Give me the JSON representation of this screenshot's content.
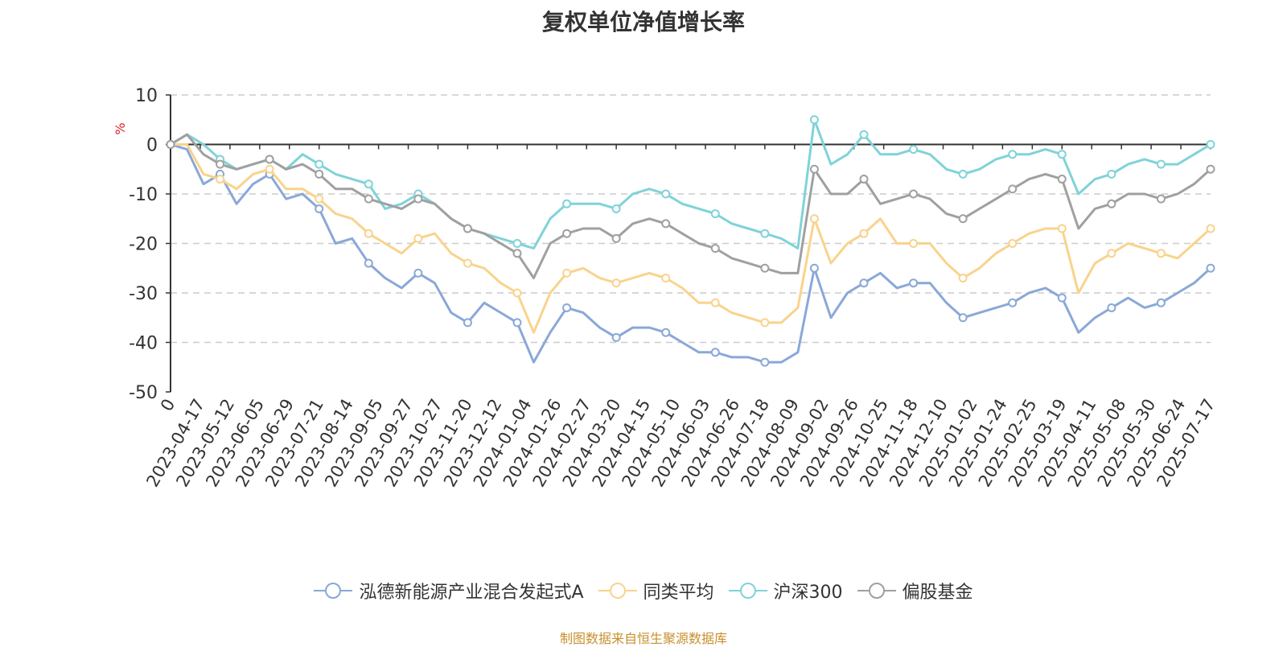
{
  "chart_data": {
    "type": "line",
    "title": "复权单位净值增长率",
    "ylabel": "%",
    "ylim": [
      -50,
      10
    ],
    "yticks": [
      10,
      0,
      -10,
      -20,
      -30,
      -40,
      -50
    ],
    "x_tick_labels": [
      "0",
      "2023-04-17",
      "2023-05-12",
      "2023-06-05",
      "2023-06-29",
      "2023-07-21",
      "2023-08-14",
      "2023-09-05",
      "2023-09-27",
      "2023-10-27",
      "2023-11-20",
      "2023-12-12",
      "2024-01-04",
      "2024-01-26",
      "2024-02-27",
      "2024-03-20",
      "2024-04-15",
      "2024-05-10",
      "2024-06-03",
      "2024-06-26",
      "2024-07-18",
      "2024-08-09",
      "2024-09-02",
      "2024-09-26",
      "2024-10-25",
      "2024-11-18",
      "2024-12-10",
      "2025-01-02",
      "2025-01-24",
      "2025-02-25",
      "2025-03-19",
      "2025-04-11",
      "2025-05-08",
      "2025-05-30",
      "2025-06-24",
      "2025-07-17"
    ],
    "grid": "dashed horizontal",
    "legend_position": "bottom",
    "series": [
      {
        "name": "泓德新能源产业混合发起式A",
        "color": "#8aa8d8",
        "values": [
          0,
          -1,
          -8,
          -6,
          -12,
          -8,
          -6,
          -11,
          -10,
          -13,
          -20,
          -19,
          -24,
          -27,
          -29,
          -26,
          -28,
          -34,
          -36,
          -32,
          -34,
          -36,
          -44,
          -38,
          -33,
          -34,
          -37,
          -39,
          -37,
          -37,
          -38,
          -40,
          -42,
          -42,
          -43,
          -43,
          -44,
          -44,
          -42,
          -25,
          -35,
          -30,
          -28,
          -26,
          -29,
          -28,
          -28,
          -32,
          -35,
          -34,
          -33,
          -32,
          -30,
          -29,
          -31,
          -38,
          -35,
          -33,
          -31,
          -33,
          -32,
          -30,
          -28,
          -25
        ]
      },
      {
        "name": "同类平均",
        "color": "#f9d38c",
        "values": [
          0,
          0,
          -6,
          -7,
          -9,
          -6,
          -5,
          -9,
          -9,
          -11,
          -14,
          -15,
          -18,
          -20,
          -22,
          -19,
          -18,
          -22,
          -24,
          -25,
          -28,
          -30,
          -38,
          -30,
          -26,
          -25,
          -27,
          -28,
          -27,
          -26,
          -27,
          -29,
          -32,
          -32,
          -34,
          -35,
          -36,
          -36,
          -33,
          -15,
          -24,
          -20,
          -18,
          -15,
          -20,
          -20,
          -20,
          -24,
          -27,
          -25,
          -22,
          -20,
          -18,
          -17,
          -17,
          -30,
          -24,
          -22,
          -20,
          -21,
          -22,
          -23,
          -20,
          -17
        ]
      },
      {
        "name": "沪深300",
        "color": "#7fd3d8",
        "values": [
          0,
          2,
          0,
          -3,
          -5,
          -4,
          -3,
          -5,
          -2,
          -4,
          -6,
          -7,
          -8,
          -13,
          -12,
          -10,
          -12,
          -15,
          -17,
          -18,
          -19,
          -20,
          -21,
          -15,
          -12,
          -12,
          -12,
          -13,
          -10,
          -9,
          -10,
          -12,
          -13,
          -14,
          -16,
          -17,
          -18,
          -19,
          -21,
          5,
          -4,
          -2,
          2,
          -2,
          -2,
          -1,
          -2,
          -5,
          -6,
          -5,
          -3,
          -2,
          -2,
          -1,
          -2,
          -10,
          -7,
          -6,
          -4,
          -3,
          -4,
          -4,
          -2,
          0
        ]
      },
      {
        "name": "偏股基金",
        "color": "#a0a0a0",
        "values": [
          0,
          2,
          -2,
          -4,
          -5,
          -4,
          -3,
          -5,
          -4,
          -6,
          -9,
          -9,
          -11,
          -12,
          -13,
          -11,
          -12,
          -15,
          -17,
          -18,
          -20,
          -22,
          -27,
          -20,
          -18,
          -17,
          -17,
          -19,
          -16,
          -15,
          -16,
          -18,
          -20,
          -21,
          -23,
          -24,
          -25,
          -26,
          -26,
          -5,
          -10,
          -10,
          -7,
          -12,
          -11,
          -10,
          -11,
          -14,
          -15,
          -13,
          -11,
          -9,
          -7,
          -6,
          -7,
          -17,
          -13,
          -12,
          -10,
          -10,
          -11,
          -10,
          -8,
          -5
        ]
      }
    ]
  },
  "legend": {
    "items": [
      {
        "label": "泓德新能源产业混合发起式A",
        "color": "#8aa8d8"
      },
      {
        "label": "同类平均",
        "color": "#f9d38c"
      },
      {
        "label": "沪深300",
        "color": "#7fd3d8"
      },
      {
        "label": "偏股基金",
        "color": "#a0a0a0"
      }
    ]
  },
  "footer": {
    "source": "制图数据来自恒生聚源数据库"
  },
  "colors": {
    "ylabel": "#e02020",
    "axis": "#333333",
    "grid": "#cccccc"
  }
}
